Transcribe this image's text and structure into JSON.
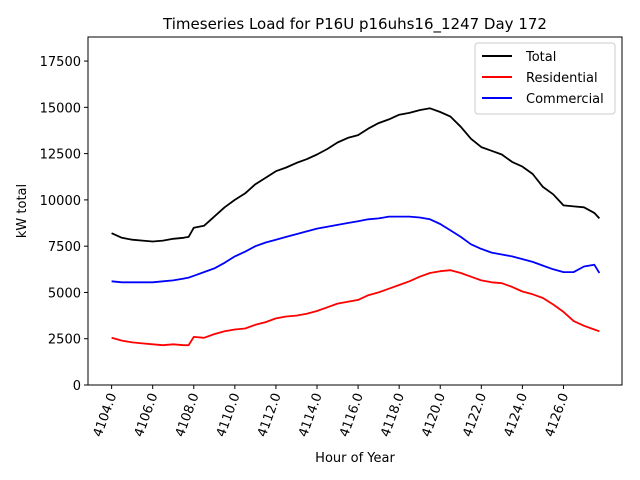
{
  "chart_data": {
    "type": "line",
    "title": "Timeseries Load for P16U p16uhs16_1247  Day 172",
    "xlabel": "Hour of Year",
    "ylabel": "kW total",
    "xlim": [
      4102.85,
      4128.85
    ],
    "ylim": [
      0,
      18800
    ],
    "grid": false,
    "legend_position": "top-right",
    "x_ticks": [
      4104,
      4106,
      4108,
      4110,
      4112,
      4114,
      4116,
      4118,
      4120,
      4122,
      4124,
      4126
    ],
    "x_tick_labels": [
      "4104.0",
      "4106.0",
      "4108.0",
      "4110.0",
      "4112.0",
      "4114.0",
      "4116.0",
      "4118.0",
      "4120.0",
      "4122.0",
      "4124.0",
      "4126.0"
    ],
    "y_ticks": [
      0,
      2500,
      5000,
      7500,
      10000,
      12500,
      15000,
      17500
    ],
    "y_tick_labels": [
      "0",
      "2500",
      "5000",
      "7500",
      "10000",
      "12500",
      "15000",
      "17500"
    ],
    "x": [
      4104,
      4104.5,
      4105,
      4105.5,
      4106,
      4106.5,
      4107,
      4107.5,
      4107.75,
      4108,
      4108.5,
      4109,
      4109.5,
      4110,
      4110.5,
      4111,
      4111.5,
      4112,
      4112.5,
      4113,
      4113.5,
      4114,
      4114.5,
      4115,
      4115.5,
      4116,
      4116.5,
      4117,
      4117.5,
      4118,
      4118.5,
      4119,
      4119.5,
      4120,
      4120.5,
      4121,
      4121.5,
      4122,
      4122.5,
      4123,
      4123.5,
      4124,
      4124.5,
      4125,
      4125.5,
      4126,
      4126.5,
      4127,
      4127.5,
      4127.75
    ],
    "series": [
      {
        "name": "Total",
        "color": "#000000",
        "values": [
          8200,
          7950,
          7850,
          7800,
          7750,
          7800,
          7900,
          7950,
          8000,
          8500,
          8600,
          9100,
          9600,
          10000,
          10350,
          10850,
          11200,
          11550,
          11750,
          12000,
          12200,
          12450,
          12750,
          13100,
          13350,
          13500,
          13850,
          14150,
          14350,
          14600,
          14700,
          14850,
          14950,
          14750,
          14500,
          13950,
          13300,
          12850,
          12650,
          12450,
          12050,
          11800,
          11400,
          10700,
          10300,
          9700,
          9650,
          9600,
          9300,
          9000
        ]
      },
      {
        "name": "Residential",
        "color": "#ff0000",
        "values": [
          2550,
          2400,
          2300,
          2250,
          2200,
          2150,
          2200,
          2150,
          2150,
          2600,
          2550,
          2750,
          2900,
          3000,
          3050,
          3250,
          3400,
          3600,
          3700,
          3750,
          3850,
          4000,
          4200,
          4400,
          4500,
          4600,
          4850,
          5000,
          5200,
          5400,
          5600,
          5850,
          6050,
          6150,
          6200,
          6050,
          5850,
          5650,
          5550,
          5500,
          5300,
          5050,
          4900,
          4700,
          4350,
          3950,
          3450,
          3200,
          3000,
          2900
        ]
      },
      {
        "name": "Commercial",
        "color": "#0000ff",
        "values": [
          5600,
          5550,
          5550,
          5550,
          5550,
          5600,
          5650,
          5750,
          5800,
          5900,
          6100,
          6300,
          6600,
          6950,
          7200,
          7500,
          7700,
          7850,
          8000,
          8150,
          8300,
          8450,
          8550,
          8650,
          8750,
          8850,
          8950,
          9000,
          9100,
          9100,
          9100,
          9050,
          8950,
          8700,
          8350,
          8000,
          7600,
          7350,
          7150,
          7050,
          6950,
          6800,
          6650,
          6450,
          6250,
          6100,
          6100,
          6400,
          6500,
          6050
        ]
      }
    ]
  }
}
